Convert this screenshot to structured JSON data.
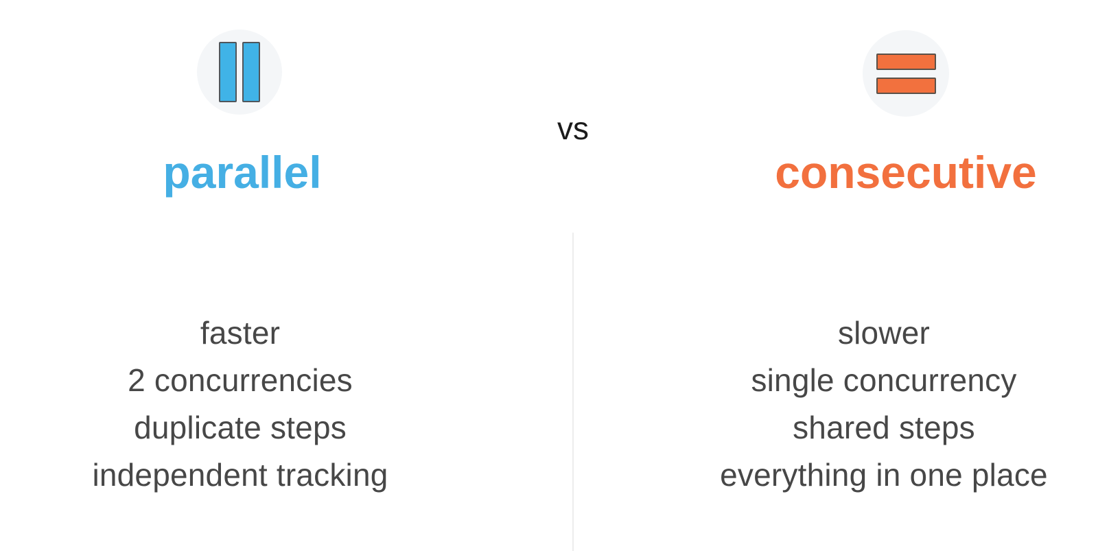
{
  "slide": {
    "vs_label": "vs",
    "left": {
      "icon": "pause-icon",
      "title": "parallel",
      "accent_color": "#41b2e6",
      "items": [
        "faster",
        "2 concurrencies",
        "duplicate steps",
        "independent tracking"
      ]
    },
    "right": {
      "icon": "equals-icon",
      "title": "consecutive",
      "accent_color": "#f2713e",
      "items": [
        "slower",
        "single concurrency",
        "shared steps",
        "everything in one place"
      ]
    },
    "colors": {
      "background": "#ffffff",
      "icon_circle_bg": "#f4f6f8",
      "bar_border": "#50565b",
      "list_text": "#474747",
      "vs_text": "#1b1b1b",
      "divider": "#ededed"
    }
  }
}
